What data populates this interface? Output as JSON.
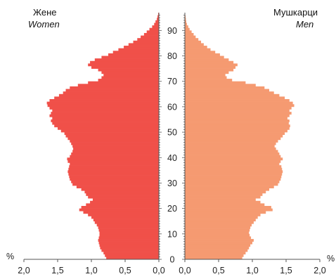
{
  "chart_data": {
    "type": "bar",
    "orientation": "horizontal",
    "subtype": "population-pyramid",
    "unit_label": "%",
    "age_axis": {
      "min": 0,
      "max": 96,
      "tick_labels": [
        0,
        10,
        20,
        30,
        40,
        50,
        60,
        70,
        80,
        90
      ]
    },
    "x_axis": {
      "range": [
        0,
        2.0
      ],
      "tick_labels": [
        "2,0",
        "1,5",
        "1,0",
        "0,5",
        "0,0",
        "0,0",
        "0,5",
        "1,0",
        "1,5",
        "2,0"
      ]
    },
    "series": [
      {
        "key": "women",
        "label": "Жене",
        "label_en": "Women",
        "side": "left",
        "color": "#f05049",
        "ages": [
          0,
          1,
          2,
          3,
          4,
          5,
          6,
          7,
          8,
          9,
          10,
          11,
          12,
          13,
          14,
          15,
          16,
          17,
          18,
          19,
          20,
          21,
          22,
          23,
          24,
          25,
          26,
          27,
          28,
          29,
          30,
          31,
          32,
          33,
          34,
          35,
          36,
          37,
          38,
          39,
          40,
          41,
          42,
          43,
          44,
          45,
          46,
          47,
          48,
          49,
          50,
          51,
          52,
          53,
          54,
          55,
          56,
          57,
          58,
          59,
          60,
          61,
          62,
          63,
          64,
          65,
          66,
          67,
          68,
          69,
          70,
          71,
          72,
          73,
          74,
          75,
          76,
          77,
          78,
          79,
          80,
          81,
          82,
          83,
          84,
          85,
          86,
          87,
          88,
          89,
          90,
          91,
          92,
          93,
          94,
          95,
          96
        ],
        "values": [
          0.78,
          0.8,
          0.82,
          0.85,
          0.87,
          0.88,
          0.89,
          0.9,
          0.89,
          0.88,
          0.88,
          0.89,
          0.9,
          0.92,
          0.95,
          0.97,
          1.0,
          1.05,
          1.12,
          1.18,
          1.15,
          1.08,
          1.02,
          0.98,
          1.05,
          1.08,
          1.1,
          1.15,
          1.22,
          1.28,
          1.3,
          1.32,
          1.33,
          1.34,
          1.35,
          1.34,
          1.33,
          1.32,
          1.35,
          1.36,
          1.32,
          1.3,
          1.28,
          1.27,
          1.28,
          1.3,
          1.32,
          1.35,
          1.38,
          1.4,
          1.45,
          1.5,
          1.55,
          1.58,
          1.6,
          1.58,
          1.62,
          1.6,
          1.58,
          1.62,
          1.65,
          1.66,
          1.62,
          1.55,
          1.48,
          1.42,
          1.38,
          1.32,
          1.2,
          1.05,
          0.9,
          0.85,
          0.82,
          0.85,
          0.9,
          1.0,
          1.05,
          1.02,
          0.95,
          0.85,
          0.75,
          0.68,
          0.6,
          0.52,
          0.45,
          0.38,
          0.32,
          0.27,
          0.22,
          0.18,
          0.14,
          0.1,
          0.07,
          0.05,
          0.03,
          0.02,
          0.01
        ]
      },
      {
        "key": "men",
        "label": "Мушкарци",
        "label_en": "Men",
        "side": "right",
        "color": "#f59a71",
        "ages": [
          0,
          1,
          2,
          3,
          4,
          5,
          6,
          7,
          8,
          9,
          10,
          11,
          12,
          13,
          14,
          15,
          16,
          17,
          18,
          19,
          20,
          21,
          22,
          23,
          24,
          25,
          26,
          27,
          28,
          29,
          30,
          31,
          32,
          33,
          34,
          35,
          36,
          37,
          38,
          39,
          40,
          41,
          42,
          43,
          44,
          45,
          46,
          47,
          48,
          49,
          50,
          51,
          52,
          53,
          54,
          55,
          56,
          57,
          58,
          59,
          60,
          61,
          62,
          63,
          64,
          65,
          66,
          67,
          68,
          69,
          70,
          71,
          72,
          73,
          74,
          75,
          76,
          77,
          78,
          79,
          80,
          81,
          82,
          83,
          84,
          85,
          86,
          87,
          88,
          89,
          90,
          91,
          92,
          93,
          94,
          95,
          96
        ],
        "values": [
          0.85,
          0.87,
          0.9,
          0.93,
          0.95,
          0.97,
          1.0,
          1.02,
          0.98,
          0.96,
          0.95,
          0.96,
          0.97,
          0.99,
          1.02,
          1.05,
          1.08,
          1.12,
          1.2,
          1.3,
          1.28,
          1.18,
          1.12,
          1.05,
          1.12,
          1.15,
          1.2,
          1.25,
          1.32,
          1.38,
          1.4,
          1.42,
          1.43,
          1.44,
          1.45,
          1.44,
          1.43,
          1.4,
          1.42,
          1.45,
          1.42,
          1.4,
          1.38,
          1.35,
          1.33,
          1.35,
          1.38,
          1.42,
          1.45,
          1.48,
          1.52,
          1.55,
          1.56,
          1.54,
          1.55,
          1.52,
          1.55,
          1.58,
          1.55,
          1.58,
          1.62,
          1.6,
          1.55,
          1.48,
          1.4,
          1.32,
          1.25,
          1.18,
          1.05,
          0.9,
          0.7,
          0.62,
          0.6,
          0.65,
          0.72,
          0.75,
          0.78,
          0.72,
          0.65,
          0.58,
          0.52,
          0.45,
          0.38,
          0.33,
          0.28,
          0.24,
          0.2,
          0.16,
          0.13,
          0.1,
          0.07,
          0.05,
          0.03,
          0.02,
          0.015,
          0.01,
          0.005
        ]
      }
    ]
  }
}
